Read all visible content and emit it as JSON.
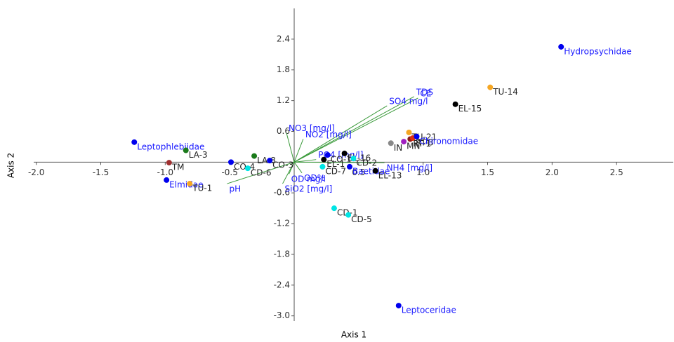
{
  "chart_data": {
    "type": "biplot",
    "x_label": "Axis 1",
    "y_label": "Axis 2",
    "xlim": [
      -2.02,
      2.94
    ],
    "ylim": [
      -3.1,
      3.0
    ],
    "xticks": [
      {
        "value": -2,
        "label": "-2.0"
      },
      -1.5,
      {
        "value": -1,
        "label": "-1.0"
      },
      -0.5,
      0.5,
      {
        "value": 1,
        "label": "1.0"
      },
      1.5,
      {
        "value": 2,
        "label": "2.0"
      },
      2.5
    ],
    "yticks": [
      2.4,
      1.8,
      1.2,
      0.6,
      -0.6,
      -1.2,
      -1.8,
      -2.4,
      {
        "value": -3,
        "label": "-3.0"
      }
    ],
    "vector_color": "#3a9a3a",
    "site_label_color": "#222222",
    "variable_label_color": "#1a1aff",
    "points": [
      {
        "label": "Hydropsychidae",
        "x": 2.07,
        "y": 2.25,
        "color": "#0000ee",
        "taxon": true
      },
      {
        "label": "TU-14",
        "x": 1.52,
        "y": 1.46,
        "color": "#f5a623",
        "taxon": false
      },
      {
        "label": "EL-15",
        "x": 1.25,
        "y": 1.13,
        "color": "#000000",
        "taxon": false
      },
      {
        "label": "TU-21",
        "x": 0.89,
        "y": 0.58,
        "color": "#f5a623",
        "taxon": false
      },
      {
        "label": "RT-1",
        "x": 0.9,
        "y": 0.45,
        "color": "#8b1a1a",
        "taxon": false
      },
      {
        "label": "RT-3",
        "x": 0.92,
        "y": 0.47,
        "color": "#e03010",
        "taxon": false
      },
      {
        "label": "Chironomidae",
        "x": 0.95,
        "y": 0.5,
        "color": "#0000ee",
        "taxon": true
      },
      {
        "label": "MN",
        "x": 0.85,
        "y": 0.4,
        "color": "#a020c0",
        "taxon": false
      },
      {
        "label": "IN",
        "x": 0.75,
        "y": 0.37,
        "color": "#888888",
        "taxon": false
      },
      {
        "label": "Leptophlebiidae",
        "x": -1.24,
        "y": 0.39,
        "color": "#0000ee",
        "taxon": true
      },
      {
        "label": "LA-3",
        "x": -0.84,
        "y": 0.23,
        "color": "#1a7a1a",
        "taxon": false
      },
      {
        "label": "TM",
        "x": -0.97,
        "y": -0.01,
        "color": "#a03030",
        "taxon": false
      },
      {
        "label": "Elmidae",
        "x": -0.99,
        "y": -0.35,
        "color": "#0000ee",
        "taxon": true
      },
      {
        "label": "TU-1",
        "x": -0.81,
        "y": -0.42,
        "color": "#f5a623",
        "taxon": false
      },
      {
        "label": "LA-8",
        "x": -0.31,
        "y": 0.12,
        "color": "#1a7a1a",
        "taxon": false
      },
      {
        "label": "CO-3",
        "x": -0.19,
        "y": 0.03,
        "color": "#0000ee",
        "taxon": false
      },
      {
        "label": "CO-4",
        "x": -0.49,
        "y": 0.0,
        "color": "#0000ee",
        "taxon": false
      },
      {
        "label": "CD-6",
        "x": -0.36,
        "y": -0.12,
        "color": "#00e5e5",
        "taxon": false
      },
      {
        "label": "CO-1",
        "x": 0.26,
        "y": 0.14,
        "color": "#0000ee",
        "taxon": false
      },
      {
        "label": "EL-16",
        "x": 0.39,
        "y": 0.17,
        "color": "#000000",
        "taxon": false
      },
      {
        "label": "EL-1",
        "x": 0.23,
        "y": 0.05,
        "color": "#000000",
        "taxon": false
      },
      {
        "label": "CD-7",
        "x": 0.22,
        "y": -0.09,
        "color": "#00e5e5",
        "taxon": false
      },
      {
        "label": "CD-2",
        "x": 0.46,
        "y": 0.07,
        "color": "#00e5e5",
        "taxon": false
      },
      {
        "label": "Baetidae",
        "x": 0.43,
        "y": -0.09,
        "color": "#0000ee",
        "taxon": true
      },
      {
        "label": "EL-13",
        "x": 0.63,
        "y": -0.17,
        "color": "#000000",
        "taxon": false
      },
      {
        "label": "CD-1",
        "x": 0.31,
        "y": -0.9,
        "color": "#00e5e5",
        "taxon": false
      },
      {
        "label": "CD-5",
        "x": 0.42,
        "y": -1.03,
        "color": "#00e5e5",
        "taxon": false
      },
      {
        "label": "Leptoceridae",
        "x": 0.81,
        "y": -2.8,
        "color": "#0000ee",
        "taxon": true
      }
    ],
    "vectors": [
      {
        "label": "TDS",
        "x": 0.93,
        "y": 1.28
      },
      {
        "label": "CE",
        "x": 0.96,
        "y": 1.25
      },
      {
        "label": "SO4 mg/l",
        "x": 0.72,
        "y": 1.1
      },
      {
        "label": "NO3 [mg/l]",
        "x": -0.06,
        "y": 0.57
      },
      {
        "label": "NO2 [mg/l]",
        "x": 0.07,
        "y": 0.45
      },
      {
        "label": "PO4 [mg/l]",
        "x": 0.17,
        "y": 0.05
      },
      {
        "label": "NH4 [mg/l]",
        "x": 0.7,
        "y": -0.01
      },
      {
        "label": "OD%",
        "x": 0.06,
        "y": -0.21
      },
      {
        "label": "OD mg/l",
        "x": -0.04,
        "y": -0.23
      },
      {
        "label": "SiO2 [mg/l]",
        "x": -0.09,
        "y": -0.42
      },
      {
        "label": "pH",
        "x": -0.52,
        "y": -0.42
      }
    ]
  }
}
